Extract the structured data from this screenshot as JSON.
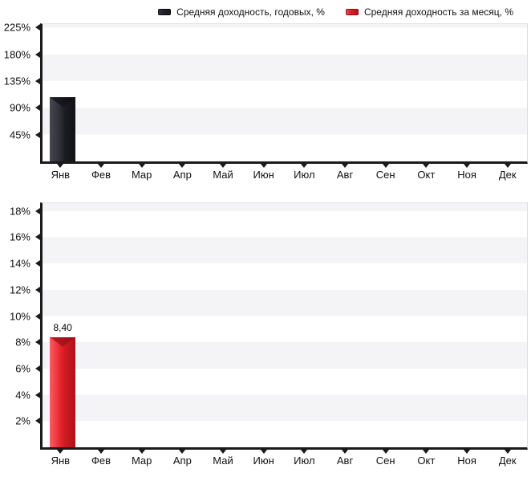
{
  "legend": {
    "items": [
      {
        "label": "Средняя доходность, годовых, %",
        "color": "#23232b"
      },
      {
        "label": "Средняя доходность за месяц, %",
        "color": "#e02128"
      }
    ]
  },
  "chart_data": [
    {
      "type": "bar",
      "name": "annual-yield",
      "series": "Средняя доходность, годовых, %",
      "categories": [
        "Янв",
        "Фев",
        "Мар",
        "Апр",
        "Май",
        "Июн",
        "Июл",
        "Авг",
        "Сен",
        "Окт",
        "Ноя",
        "Дек"
      ],
      "values": [
        108,
        null,
        null,
        null,
        null,
        null,
        null,
        null,
        null,
        null,
        null,
        null
      ],
      "value_labels": [
        null,
        null,
        null,
        null,
        null,
        null,
        null,
        null,
        null,
        null,
        null,
        null
      ],
      "bar_color": "#23232b",
      "bar_style": "black",
      "ytick_labels": [
        "45%",
        "90%",
        "135%",
        "180%",
        "225%"
      ],
      "ytick_values": [
        45,
        90,
        135,
        180,
        225
      ],
      "ytick_step": 45,
      "ylim": [
        0,
        231
      ],
      "grid": "alternating-bands",
      "band_color": "#f4f4f6",
      "legend_position": "top"
    },
    {
      "type": "bar",
      "name": "monthly-yield",
      "series": "Средняя доходность за месяц, %",
      "categories": [
        "Янв",
        "Фев",
        "Мар",
        "Апр",
        "Май",
        "Июн",
        "Июл",
        "Авг",
        "Сен",
        "Окт",
        "Ноя",
        "Дек"
      ],
      "values": [
        8.4,
        null,
        null,
        null,
        null,
        null,
        null,
        null,
        null,
        null,
        null,
        null
      ],
      "value_labels": [
        "8,40",
        null,
        null,
        null,
        null,
        null,
        null,
        null,
        null,
        null,
        null,
        null
      ],
      "bar_color": "#e02128",
      "bar_style": "red",
      "ytick_labels": [
        "2%",
        "4%",
        "6%",
        "8%",
        "10%",
        "12%",
        "14%",
        "16%",
        "18%"
      ],
      "ytick_values": [
        2,
        4,
        6,
        8,
        10,
        12,
        14,
        16,
        18
      ],
      "ytick_step": 2,
      "ylim": [
        0,
        18.6
      ],
      "grid": "alternating-bands",
      "band_color": "#f4f4f6",
      "legend_position": "top"
    }
  ]
}
